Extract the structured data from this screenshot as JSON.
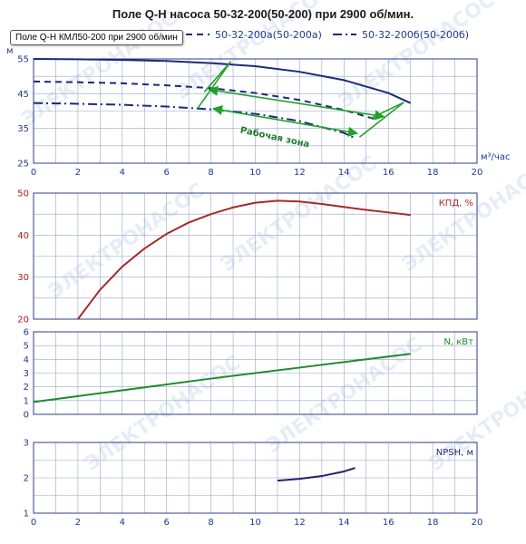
{
  "title": "Поле Q-H насоса 50-32-200(50-200) при 2900 об/мин.",
  "tooltip": "Поле Q-H КМЛ50-200 при 2900 об/мин",
  "watermark": "ЭЛЕКТРОНАСОС",
  "colors": {
    "axis": "#1f3b8c",
    "qh_main": "#1a2a7a",
    "efficiency": "#a52a2a",
    "power": "#1e8a2e",
    "npsh": "#2a1f6e",
    "working_zone": "#22a02a",
    "grid": "#9aa6c8"
  },
  "chart_data": [
    {
      "id": "qh",
      "type": "line",
      "xlabel": "м³/час",
      "ylabel": "м",
      "xlim": [
        0,
        20
      ],
      "ylim": [
        25,
        55
      ],
      "xticks": [
        0,
        2,
        4,
        6,
        8,
        10,
        12,
        14,
        16,
        18,
        20
      ],
      "yticks": [
        25,
        35,
        45,
        55
      ],
      "legend_placement": "top",
      "series": [
        {
          "name": "",
          "style": "solid",
          "x": [
            0,
            2,
            4,
            6,
            8,
            10,
            12,
            14,
            16,
            17
          ],
          "y": [
            55,
            54.9,
            54.7,
            54.4,
            53.8,
            52.9,
            51.3,
            48.9,
            45.2,
            42.3
          ]
        },
        {
          "name": "50-32-200а(50-200а)",
          "style": "dashed",
          "x": [
            0,
            2,
            4,
            6,
            8,
            10,
            12,
            14,
            15.5
          ],
          "y": [
            48.5,
            48.3,
            48,
            47.4,
            46.6,
            45.2,
            43.2,
            40.3,
            37.5
          ]
        },
        {
          "name": "50-32-200б(50-200б)",
          "style": "dashdot",
          "x": [
            0,
            2,
            4,
            6,
            8,
            10,
            12,
            14,
            14.5
          ],
          "y": [
            42.3,
            42.1,
            41.8,
            41.3,
            40.5,
            39.2,
            37.1,
            33.7,
            32.2
          ]
        }
      ],
      "annotations": [
        {
          "text": "Рабочая зона",
          "x": 9.3,
          "y": 33.8
        }
      ],
      "working_zone": {
        "left_bound": [
          [
            7.7,
            45.5
          ],
          [
            8.9,
            54.3
          ],
          [
            7.4,
            40.8
          ]
        ],
        "right_bound": [
          [
            15.2,
            37.9
          ],
          [
            16.7,
            42.5
          ],
          [
            14.7,
            32.5
          ]
        ],
        "arrows": [
          [
            [
              7.9,
              46.2
            ],
            [
              15.8,
              38.4
            ]
          ],
          [
            [
              8.1,
              40.7
            ],
            [
              14.6,
              33.6
            ]
          ]
        ]
      }
    },
    {
      "id": "efficiency",
      "type": "line",
      "ylabel": "КПД, %",
      "xlim": [
        0,
        20
      ],
      "ylim": [
        20,
        50
      ],
      "yticks": [
        20,
        30,
        40,
        50
      ],
      "series": [
        {
          "name": "",
          "x": [
            2,
            3,
            4,
            5,
            6,
            7,
            8,
            9,
            10,
            11,
            12,
            13,
            14,
            15,
            16,
            17
          ],
          "y": [
            20,
            27,
            32.5,
            36.8,
            40.3,
            43,
            45,
            46.6,
            47.7,
            48.2,
            48,
            47.4,
            46.7,
            46,
            45.4,
            44.8
          ]
        }
      ]
    },
    {
      "id": "power",
      "type": "line",
      "ylabel": "N, кВт",
      "xlim": [
        0,
        20
      ],
      "ylim": [
        0,
        6
      ],
      "yticks": [
        0,
        1,
        2,
        3,
        4,
        5,
        6
      ],
      "series": [
        {
          "name": "",
          "x": [
            0,
            4,
            8,
            12,
            17
          ],
          "y": [
            0.9,
            1.75,
            2.6,
            3.4,
            4.4
          ]
        }
      ]
    },
    {
      "id": "npsh",
      "type": "line",
      "ylabel": "NPSH, м",
      "xlim": [
        0,
        20
      ],
      "ylim": [
        1,
        3
      ],
      "xticks": [
        0,
        2,
        4,
        6,
        8,
        10,
        12,
        14,
        16,
        18,
        20
      ],
      "yticks": [
        1,
        2,
        3
      ],
      "series": [
        {
          "name": "",
          "x": [
            11,
            12,
            13,
            14,
            14.5
          ],
          "y": [
            1.92,
            1.97,
            2.05,
            2.18,
            2.28
          ]
        }
      ]
    }
  ]
}
